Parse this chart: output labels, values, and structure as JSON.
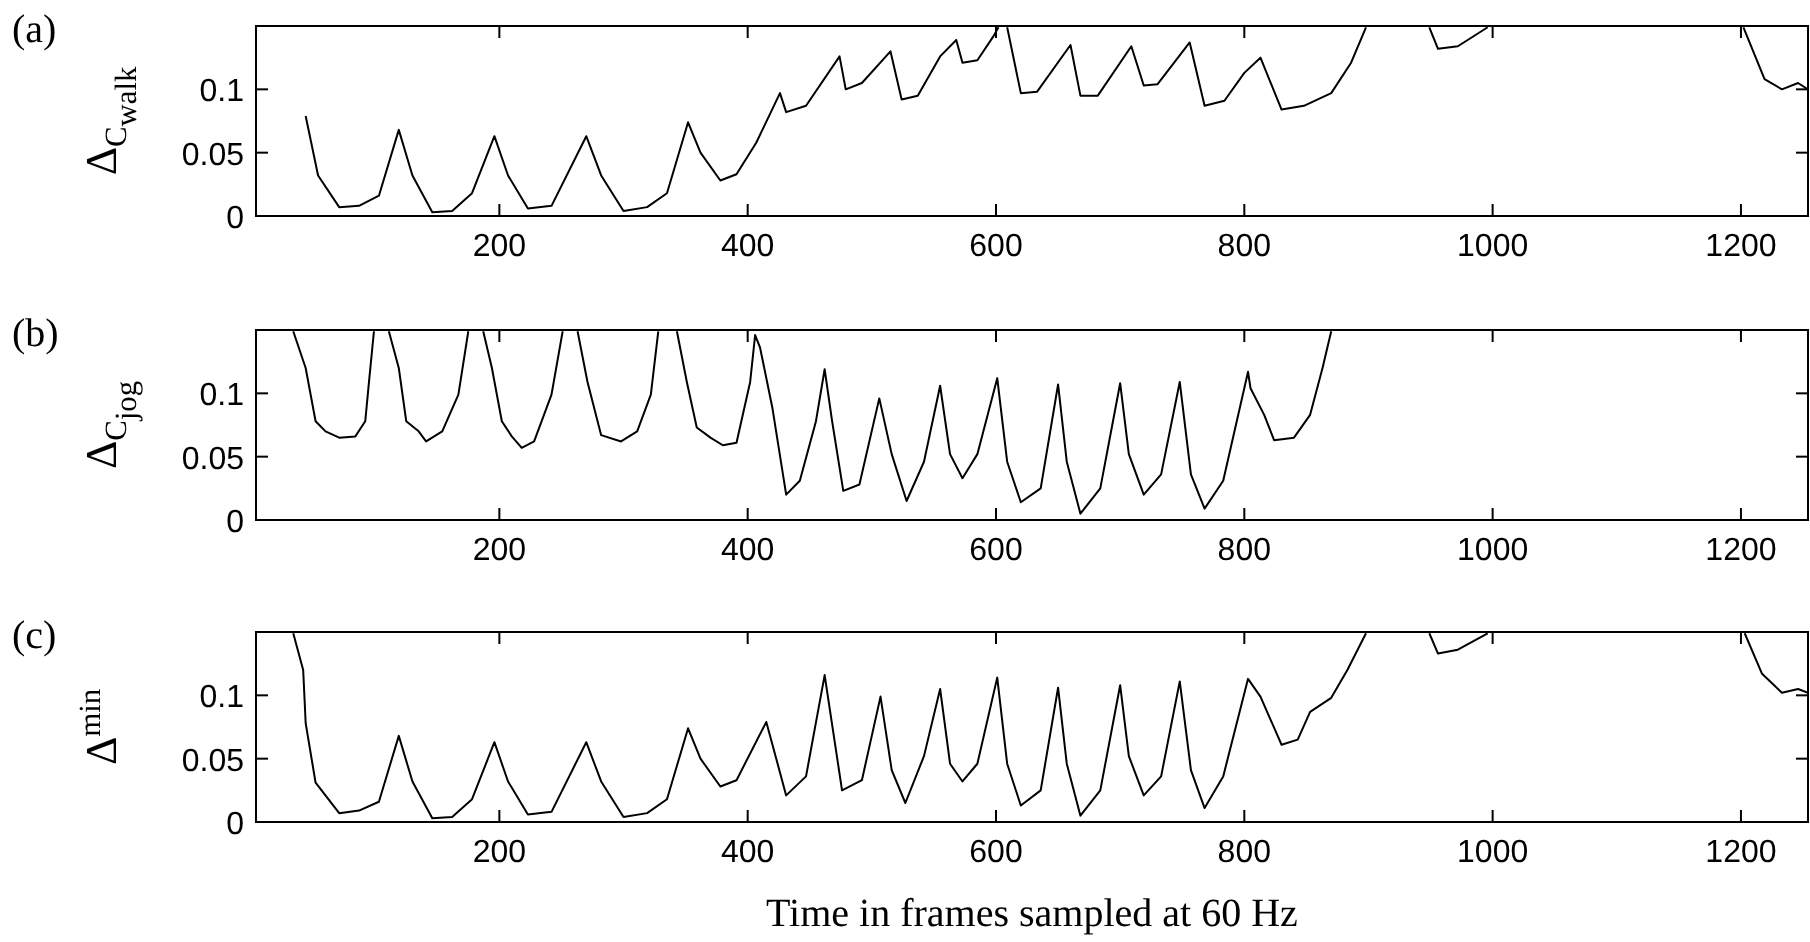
{
  "chart_data": [
    {
      "type": "line",
      "title": "(a)",
      "ylabel": "Δ$_{C}$$_{walk}$",
      "xlim": [
        4,
        1254
      ],
      "ylim": [
        0,
        0.15
      ],
      "xticks": [
        200,
        400,
        600,
        800,
        1000,
        1200
      ],
      "yticks": [
        0,
        0.05,
        0.1
      ],
      "grid": false,
      "color": "#000000",
      "x": [
        44,
        54,
        71,
        87,
        103,
        119,
        130,
        146,
        162,
        178,
        196,
        207,
        223,
        242,
        270,
        282,
        300,
        319,
        335,
        352,
        362,
        378,
        391,
        407,
        426,
        431,
        447,
        474,
        479,
        492,
        515,
        524,
        537,
        555,
        568,
        573,
        585,
        598,
        602,
        605,
        609,
        620,
        633,
        660,
        668,
        682,
        709,
        719,
        730,
        756,
        768,
        784,
        800,
        813,
        830,
        848,
        870,
        886,
        898,
        920,
        949,
        956,
        972,
        996,
        1100,
        1202,
        1219,
        1233,
        1246,
        1254
      ],
      "values": [
        0.079,
        0.032,
        0.007,
        0.008,
        0.016,
        0.068,
        0.032,
        0.003,
        0.004,
        0.018,
        0.063,
        0.032,
        0.006,
        0.008,
        0.063,
        0.032,
        0.004,
        0.007,
        0.018,
        0.074,
        0.05,
        0.028,
        0.033,
        0.058,
        0.097,
        0.082,
        0.087,
        0.126,
        0.1,
        0.105,
        0.13,
        0.092,
        0.095,
        0.126,
        0.139,
        0.121,
        0.123,
        0.142,
        0.149,
        null,
        0.149,
        0.097,
        0.098,
        0.135,
        0.095,
        0.095,
        0.134,
        0.103,
        0.104,
        0.137,
        0.087,
        0.091,
        0.113,
        0.125,
        0.084,
        0.087,
        0.097,
        0.121,
        0.149,
        null,
        0.149,
        0.132,
        0.134,
        0.149,
        null,
        0.149,
        0.108,
        0.1,
        0.105,
        0.1
      ]
    },
    {
      "type": "line",
      "title": "(b)",
      "ylabel": "Δ$_{C}$$_{jog}$",
      "xlim": [
        4,
        1254
      ],
      "ylim": [
        0,
        0.15
      ],
      "xticks": [
        200,
        400,
        600,
        800,
        1000,
        1200
      ],
      "yticks": [
        0,
        0.05,
        0.1
      ],
      "grid": false,
      "color": "#000000",
      "x": [
        34,
        44,
        52,
        60,
        71,
        84,
        92,
        95,
        99,
        105,
        111,
        119,
        125,
        135,
        141,
        154,
        167,
        175,
        181,
        187,
        194,
        202,
        210,
        218,
        228,
        242,
        251,
        257,
        263,
        271,
        282,
        298,
        311,
        322,
        328,
        335,
        343,
        351,
        359,
        370,
        380,
        391,
        402,
        406,
        410,
        420,
        431,
        442,
        455,
        462,
        468,
        477,
        490,
        506,
        516,
        528,
        542,
        555,
        563,
        573,
        585,
        601,
        609,
        620,
        636,
        650,
        657,
        668,
        684,
        700,
        707,
        719,
        733,
        748,
        757,
        768,
        783,
        803,
        805,
        816,
        824,
        840,
        853,
        863,
        870
      ],
      "values": [
        0.149,
        0.12,
        0.078,
        0.07,
        0.065,
        0.066,
        0.078,
        0.109,
        0.149,
        null,
        0.149,
        0.12,
        0.078,
        0.07,
        0.062,
        0.07,
        0.099,
        0.149,
        null,
        0.149,
        0.12,
        0.078,
        0.066,
        0.057,
        0.062,
        0.099,
        0.149,
        null,
        0.149,
        0.109,
        0.067,
        0.062,
        0.07,
        0.099,
        0.149,
        null,
        0.149,
        0.109,
        0.073,
        0.065,
        0.059,
        0.061,
        0.109,
        0.146,
        0.136,
        0.088,
        0.02,
        0.031,
        0.078,
        0.119,
        0.078,
        0.023,
        0.028,
        0.096,
        0.052,
        0.015,
        0.046,
        0.106,
        0.052,
        0.033,
        0.052,
        0.112,
        0.046,
        0.014,
        0.025,
        0.107,
        0.046,
        0.005,
        0.025,
        0.108,
        0.052,
        0.02,
        0.036,
        0.109,
        0.036,
        0.009,
        0.031,
        0.117,
        0.104,
        0.083,
        0.063,
        0.065,
        0.083,
        0.12,
        0.149
      ]
    },
    {
      "type": "line",
      "title": "(c)",
      "ylabel": "Δ$^{min}$",
      "xlabel": "Time in frames sampled at 60 Hz",
      "xlim": [
        4,
        1254
      ],
      "ylim": [
        0,
        0.15
      ],
      "xticks": [
        200,
        400,
        600,
        800,
        1000,
        1200
      ],
      "yticks": [
        0,
        0.05,
        0.1
      ],
      "grid": false,
      "color": "#000000",
      "x": [
        34,
        42,
        44,
        52,
        71,
        87,
        103,
        119,
        130,
        146,
        162,
        178,
        196,
        207,
        223,
        242,
        270,
        282,
        300,
        319,
        335,
        352,
        362,
        378,
        391,
        415,
        431,
        447,
        462,
        476,
        492,
        507,
        516,
        527,
        542,
        555,
        563,
        573,
        585,
        601,
        609,
        620,
        636,
        650,
        657,
        668,
        684,
        700,
        707,
        719,
        733,
        748,
        757,
        768,
        783,
        803,
        813,
        830,
        843,
        853,
        870,
        883,
        898,
        920,
        949,
        956,
        972,
        996,
        1100,
        1203,
        1217,
        1233,
        1246,
        1254
      ],
      "values": [
        0.149,
        0.12,
        0.078,
        0.031,
        0.007,
        0.009,
        0.016,
        0.068,
        0.032,
        0.003,
        0.004,
        0.018,
        0.063,
        0.032,
        0.006,
        0.008,
        0.063,
        0.032,
        0.004,
        0.007,
        0.018,
        0.074,
        0.05,
        0.028,
        0.033,
        0.079,
        0.021,
        0.036,
        0.116,
        0.025,
        0.033,
        0.099,
        0.041,
        0.015,
        0.052,
        0.105,
        0.046,
        0.032,
        0.046,
        0.114,
        0.046,
        0.013,
        0.025,
        0.106,
        0.046,
        0.005,
        0.025,
        0.108,
        0.052,
        0.021,
        0.036,
        0.111,
        0.041,
        0.011,
        0.036,
        0.113,
        0.099,
        0.061,
        0.065,
        0.087,
        0.098,
        0.12,
        0.149,
        null,
        0.149,
        0.133,
        0.136,
        0.149,
        null,
        0.149,
        0.117,
        0.102,
        0.105,
        0.102
      ]
    }
  ]
}
